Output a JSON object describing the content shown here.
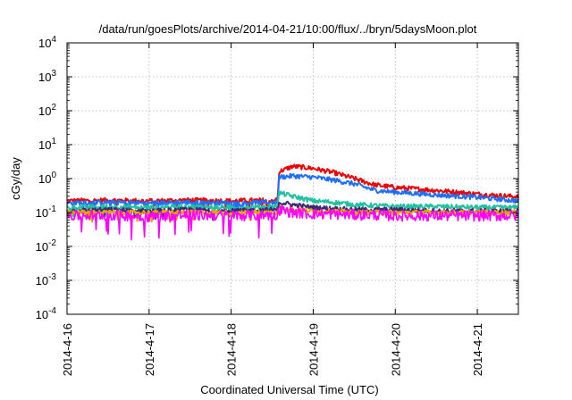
{
  "chart_data": {
    "type": "line",
    "title": "/data/run/goesPlots/archive/2014-04-21/10:00/flux/../bryn/5daysMoon.plot",
    "xlabel": "Coordinated Universal Time (UTC)",
    "ylabel": "cGy/day",
    "yscale": "log",
    "ylim": [
      0.0001,
      10000
    ],
    "xlim": [
      "2014-04-16T00:00",
      "2014-04-21T12:00"
    ],
    "grid": true,
    "legend": "none",
    "x_ticks": [
      {
        "label": "2014-4-16",
        "value": "2014-04-16"
      },
      {
        "label": "2014-4-17",
        "value": "2014-04-17"
      },
      {
        "label": "2014-4-18",
        "value": "2014-04-18"
      },
      {
        "label": "2014-4-19",
        "value": "2014-04-19"
      },
      {
        "label": "2014-4-20",
        "value": "2014-04-20"
      },
      {
        "label": "2014-4-21",
        "value": "2014-04-21"
      }
    ],
    "y_ticks": [
      {
        "mantissa": "10",
        "exp": "-4",
        "value": 0.0001
      },
      {
        "mantissa": "10",
        "exp": "-3",
        "value": 0.001
      },
      {
        "mantissa": "10",
        "exp": "-2",
        "value": 0.01
      },
      {
        "mantissa": "10",
        "exp": "-1",
        "value": 0.1
      },
      {
        "mantissa": "10",
        "exp": "0",
        "value": 1
      },
      {
        "mantissa": "10",
        "exp": "1",
        "value": 10
      },
      {
        "mantissa": "10",
        "exp": "2",
        "value": 100
      },
      {
        "mantissa": "10",
        "exp": "3",
        "value": 1000
      },
      {
        "mantissa": "10",
        "exp": "4",
        "value": 10000
      }
    ],
    "x": [
      "2014-04-16T00:00",
      "2014-04-16T12:00",
      "2014-04-17T00:00",
      "2014-04-17T12:00",
      "2014-04-18T00:00",
      "2014-04-18T12:00",
      "2014-04-18T13:36",
      "2014-04-18T14:00",
      "2014-04-18T18:00",
      "2014-04-19T00:00",
      "2014-04-19T06:00",
      "2014-04-19T12:00",
      "2014-04-19T18:00",
      "2014-04-20T00:00",
      "2014-04-20T12:00",
      "2014-04-21T00:00",
      "2014-04-21T12:00"
    ],
    "series": [
      {
        "color": "#ee0000",
        "values": [
          0.22,
          0.23,
          0.22,
          0.23,
          0.22,
          0.23,
          0.23,
          1.6,
          2.3,
          2.0,
          1.5,
          1.0,
          0.65,
          0.55,
          0.45,
          0.35,
          0.29
        ]
      },
      {
        "color": "#1f6fff",
        "values": [
          0.19,
          0.2,
          0.19,
          0.2,
          0.19,
          0.2,
          0.2,
          1.1,
          1.2,
          1.1,
          0.9,
          0.7,
          0.45,
          0.4,
          0.33,
          0.28,
          0.22
        ]
      },
      {
        "color": "#20c0a0",
        "values": [
          0.14,
          0.15,
          0.14,
          0.15,
          0.14,
          0.15,
          0.15,
          0.38,
          0.3,
          0.22,
          0.2,
          0.17,
          0.16,
          0.15,
          0.15,
          0.14,
          0.14
        ]
      },
      {
        "color": "#3c2a70",
        "values": [
          0.11,
          0.12,
          0.11,
          0.12,
          0.11,
          0.12,
          0.12,
          0.2,
          0.17,
          0.14,
          0.13,
          0.12,
          0.12,
          0.12,
          0.11,
          0.11,
          0.11
        ]
      },
      {
        "color": "#f0a000",
        "values": [
          0.1,
          0.1,
          0.1,
          0.1,
          0.1,
          0.1,
          0.1,
          0.14,
          0.12,
          0.11,
          0.11,
          0.1,
          0.1,
          0.1,
          0.1,
          0.1,
          0.1
        ]
      },
      {
        "color": "#ff00ff",
        "values": [
          0.08,
          0.085,
          0.075,
          0.085,
          0.08,
          0.085,
          0.085,
          0.12,
          0.1,
          0.09,
          0.09,
          0.085,
          0.085,
          0.08,
          0.08,
          0.08,
          0.08
        ]
      }
    ]
  }
}
